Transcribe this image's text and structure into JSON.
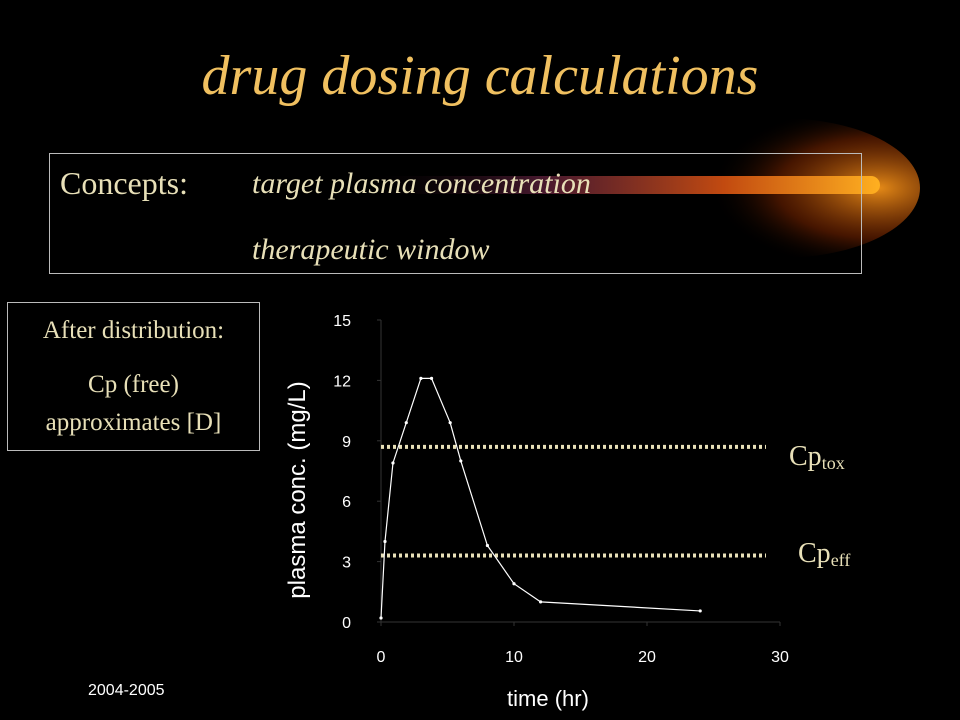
{
  "title": "drug dosing calculations",
  "concepts": {
    "label": "Concepts:",
    "items": [
      "target plasma concentration",
      "therapeutic window"
    ]
  },
  "distribution_box": {
    "line1": "After distribution:",
    "line2": "Cp (free)",
    "line3": "approximates [D]"
  },
  "annotations": {
    "cp_tox": {
      "main": "Cp",
      "sub": "tox"
    },
    "cp_eff": {
      "main": "Cp",
      "sub": "eff"
    }
  },
  "footer": "2004-2005",
  "colors": {
    "title": "#f0c060",
    "text": "#e8e0b8",
    "threshold": "#e8e0b8",
    "curve": "#ffffff"
  },
  "chart_data": {
    "type": "line",
    "xlabel": "time (hr)",
    "ylabel": "plasma conc. (mg/L)",
    "xlim": [
      0,
      30
    ],
    "ylim": [
      0,
      15
    ],
    "xticks": [
      0,
      10,
      20,
      30
    ],
    "yticks": [
      0,
      3,
      6,
      9,
      12,
      15
    ],
    "series": [
      {
        "x": [
          0,
          0.3,
          0.9,
          1.9,
          3.0,
          3.8,
          5.2,
          6.0,
          8.0,
          10.0,
          12.0,
          24.0
        ],
        "y": [
          0.2,
          4.0,
          7.9,
          9.9,
          12.1,
          12.1,
          9.9,
          8.0,
          3.8,
          1.9,
          1.0,
          0.55
        ]
      }
    ],
    "thresholds": [
      {
        "name": "Cp tox",
        "y": 8.7
      },
      {
        "name": "Cp eff",
        "y": 3.3
      }
    ]
  }
}
